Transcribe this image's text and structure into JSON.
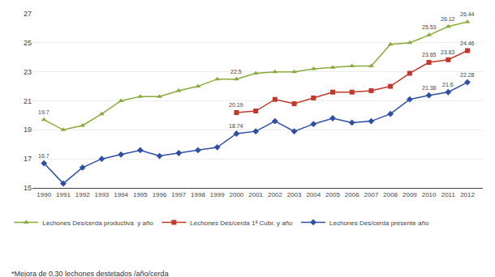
{
  "chart_data": {
    "type": "line",
    "x": [
      1990,
      1991,
      1992,
      1993,
      1994,
      1995,
      1996,
      1997,
      1998,
      1999,
      2000,
      2001,
      2002,
      2003,
      2004,
      2005,
      2006,
      2007,
      2008,
      2009,
      2010,
      2011,
      2012
    ],
    "series": [
      {
        "name": "Lechones Des/cerda productiva  y año",
        "color": "#8aab3c",
        "marker": "triangle-up",
        "values": [
          19.7,
          19.0,
          19.3,
          20.1,
          21.0,
          21.3,
          21.3,
          21.7,
          22.0,
          22.5,
          22.5,
          22.9,
          23.0,
          23.0,
          23.2,
          23.3,
          23.4,
          23.4,
          24.9,
          25.0,
          25.53,
          26.12,
          26.44
        ]
      },
      {
        "name": "Lechones Des/cerda 1ª Cubr. y año",
        "color": "#c0392b",
        "marker": "square",
        "values": [
          null,
          null,
          null,
          null,
          null,
          null,
          null,
          null,
          null,
          null,
          20.19,
          20.3,
          21.1,
          20.8,
          21.2,
          21.6,
          21.6,
          21.7,
          22.0,
          22.9,
          23.65,
          23.83,
          24.46
        ]
      },
      {
        "name": "Lechones Des/cerda presente año",
        "color": "#2e4fa3",
        "marker": "diamond",
        "values": [
          16.7,
          15.3,
          16.4,
          17.0,
          17.3,
          17.6,
          17.2,
          17.4,
          17.6,
          17.8,
          18.74,
          18.9,
          19.6,
          18.9,
          19.4,
          19.8,
          19.5,
          19.6,
          20.1,
          21.1,
          21.38,
          21.6,
          22.28
        ]
      }
    ],
    "xlim": [
      1989.4,
      2012.8
    ],
    "xticks": [
      1990,
      1991,
      1992,
      1993,
      1994,
      1995,
      1996,
      1997,
      1998,
      1999,
      2000,
      2001,
      2002,
      2003,
      2004,
      2005,
      2006,
      2007,
      2008,
      2009,
      2010,
      2011,
      2012
    ],
    "ylim": [
      15,
      27
    ],
    "yticks": [
      15,
      17,
      19,
      21,
      23,
      25,
      27
    ],
    "grid": true,
    "legend": "bottom",
    "annotations": [
      {
        "x": 1990,
        "y": 19.7,
        "text": "19.7"
      },
      {
        "x": 2000,
        "y": 22.5,
        "text": "22.5"
      },
      {
        "x": 2010,
        "y": 25.53,
        "text": "25.53"
      },
      {
        "x": 2011,
        "y": 26.12,
        "text": "26.12"
      },
      {
        "x": 2012,
        "y": 26.44,
        "text": "26.44"
      },
      {
        "x": 2000,
        "y": 20.19,
        "text": "20.19"
      },
      {
        "x": 2010,
        "y": 23.65,
        "text": "23.65"
      },
      {
        "x": 2011,
        "y": 23.83,
        "text": "23.83"
      },
      {
        "x": 2012,
        "y": 24.46,
        "text": "24.46"
      },
      {
        "x": 1990,
        "y": 16.7,
        "text": "16.7"
      },
      {
        "x": 2000,
        "y": 18.74,
        "text": "18.74"
      },
      {
        "x": 2010,
        "y": 21.38,
        "text": "21.38"
      },
      {
        "x": 2011,
        "y": 21.6,
        "text": "21.6"
      },
      {
        "x": 2012,
        "y": 22.28,
        "text": "22.28"
      }
    ],
    "footnote": "*Mejora de 0,30 lechones destetados /año/cerda"
  }
}
